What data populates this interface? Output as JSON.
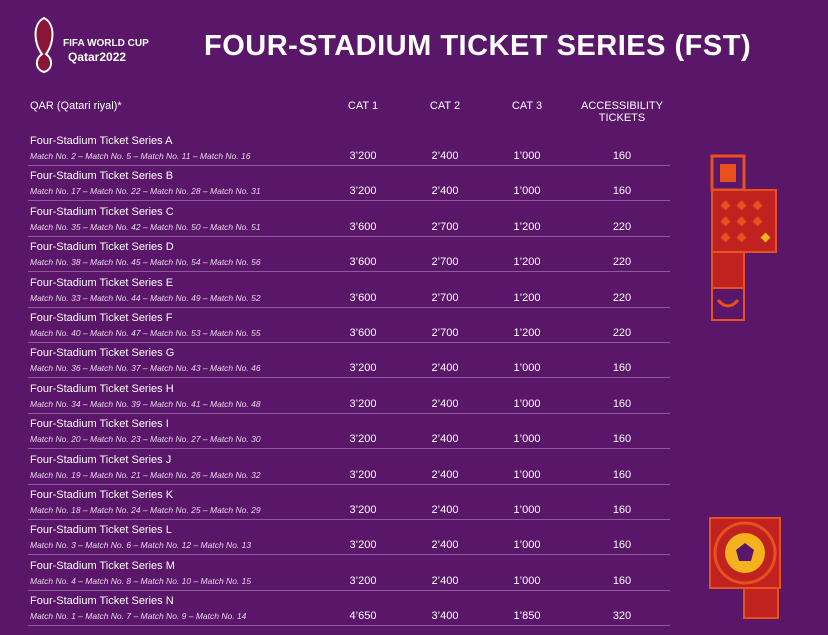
{
  "header": {
    "logo_line1": "FIFA WORLD CUP",
    "logo_line2": "Qatar2022",
    "title": "FOUR-STADIUM TICKET SERIES (FST)"
  },
  "table": {
    "columns": [
      "QAR (Qatari riyal)*",
      "CAT 1",
      "CAT 2",
      "CAT 3",
      "ACCESSIBILITY TICKETS"
    ],
    "rows": [
      {
        "name": "Four-Stadium Ticket Series A",
        "matches": "Match No. 2 – Match No. 5 – Match No. 11 – Match No. 16",
        "prices": [
          "3’200",
          "2’400",
          "1’000",
          "160"
        ]
      },
      {
        "name": "Four-Stadium Ticket Series B",
        "matches": "Match No. 17 – Match No. 22 – Match No. 28 – Match No. 31",
        "prices": [
          "3’200",
          "2’400",
          "1’000",
          "160"
        ]
      },
      {
        "name": "Four-Stadium Ticket Series C",
        "matches": "Match No. 35 – Match No. 42 – Match No. 50 – Match No. 51",
        "prices": [
          "3’600",
          "2’700",
          "1’200",
          "220"
        ]
      },
      {
        "name": "Four-Stadium Ticket Series D",
        "matches": "Match No. 38 – Match No. 45 – Match No. 54 – Match No. 56",
        "prices": [
          "3’600",
          "2’700",
          "1’200",
          "220"
        ]
      },
      {
        "name": "Four-Stadium Ticket Series E",
        "matches": "Match No. 33 – Match No. 44 – Match No. 49 – Match No. 52",
        "prices": [
          "3’600",
          "2’700",
          "1’200",
          "220"
        ]
      },
      {
        "name": "Four-Stadium Ticket Series F",
        "matches": "Match No. 40 – Match No. 47 – Match No. 53 – Match No. 55",
        "prices": [
          "3’600",
          "2’700",
          "1’200",
          "220"
        ]
      },
      {
        "name": "Four-Stadium Ticket Series G",
        "matches": "Match No. 36 – Match No. 37 – Match No. 43 – Match No. 46",
        "prices": [
          "3’200",
          "2’400",
          "1’000",
          "160"
        ]
      },
      {
        "name": "Four-Stadium Ticket Series H",
        "matches": "Match No. 34 – Match No. 39 – Match No. 41 – Match No. 48",
        "prices": [
          "3’200",
          "2’400",
          "1’000",
          "160"
        ]
      },
      {
        "name": "Four-Stadium Ticket Series I",
        "matches": "Match No. 20 – Match No. 23 – Match No. 27 – Match No. 30",
        "prices": [
          "3’200",
          "2’400",
          "1’000",
          "160"
        ]
      },
      {
        "name": "Four-Stadium Ticket Series J",
        "matches": "Match No. 19 – Match No. 21 – Match No. 26 – Match No. 32",
        "prices": [
          "3’200",
          "2’400",
          "1’000",
          "160"
        ]
      },
      {
        "name": "Four-Stadium Ticket Series K",
        "matches": "Match No. 18 – Match No. 24 – Match No. 25 – Match No. 29",
        "prices": [
          "3’200",
          "2’400",
          "1’000",
          "160"
        ]
      },
      {
        "name": "Four-Stadium Ticket Series L",
        "matches": "Match No. 3 – Match No. 6 – Match No. 12 – Match No. 13",
        "prices": [
          "3’200",
          "2’400",
          "1’000",
          "160"
        ]
      },
      {
        "name": "Four-Stadium Ticket Series M",
        "matches": "Match No. 4 – Match No. 8 – Match No. 10 – Match No. 15",
        "prices": [
          "3’200",
          "2’400",
          "1’000",
          "160"
        ]
      },
      {
        "name": "Four-Stadium Ticket Series N",
        "matches": "Match No. 1 – Match No. 7 – Match No. 9 – Match No. 14",
        "prices": [
          "4’650",
          "3’400",
          "1’850",
          "320"
        ]
      }
    ]
  }
}
